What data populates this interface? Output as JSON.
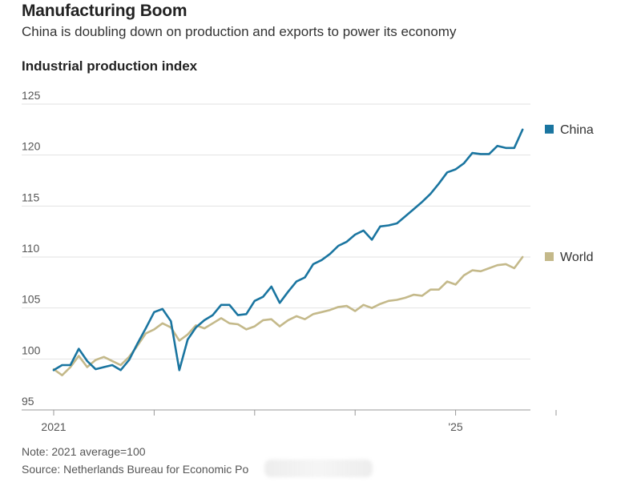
{
  "header": {
    "title": "Manufacturing Boom",
    "subtitle": "China is doubling down on production and exports to power its economy",
    "chart_label": "Industrial production index"
  },
  "footer": {
    "note": "Note: 2021 average=100",
    "source": "Source: Netherlands Bureau for Economic Po"
  },
  "colors": {
    "china": "#1a75a0",
    "world": "#c4b98a",
    "grid": "#e2e2e2",
    "axis": "#999999"
  },
  "chart_data": {
    "type": "line",
    "title": "Industrial production index",
    "xlabel": "",
    "ylabel": "",
    "x_tick_labels": [
      "2021",
      "'25"
    ],
    "x_tick_label_index": [
      0,
      48
    ],
    "x_tick_index": [
      0,
      12,
      24,
      36,
      48,
      60
    ],
    "yticks": [
      125,
      120,
      115,
      110,
      105,
      100,
      95
    ],
    "ylim": [
      94.5,
      126
    ],
    "grid": true,
    "legend": "right, at line ends",
    "series": [
      {
        "name": "China",
        "color": "#1a75a0",
        "values": [
          98.9,
          99.4,
          99.4,
          101.0,
          99.8,
          99.0,
          99.2,
          99.4,
          98.9,
          99.9,
          101.5,
          103.0,
          104.6,
          104.9,
          103.7,
          98.9,
          101.9,
          103.1,
          103.8,
          104.3,
          105.3,
          105.3,
          104.3,
          104.4,
          105.7,
          106.1,
          107.1,
          105.5,
          106.6,
          107.6,
          108.0,
          109.3,
          109.7,
          110.3,
          111.1,
          111.5,
          112.2,
          112.6,
          111.7,
          113.0,
          113.1,
          113.3,
          114.0,
          114.7,
          115.4,
          116.2,
          117.2,
          118.3,
          118.6,
          119.2,
          120.2,
          120.1,
          120.1,
          120.9,
          120.7,
          120.7,
          122.5
        ]
      },
      {
        "name": "World",
        "color": "#c4b98a",
        "values": [
          99.0,
          98.4,
          99.2,
          100.3,
          99.2,
          99.9,
          100.2,
          99.8,
          99.4,
          100.2,
          101.3,
          102.5,
          102.9,
          103.5,
          103.1,
          101.8,
          102.4,
          103.3,
          103.0,
          103.5,
          104.0,
          103.5,
          103.4,
          102.9,
          103.2,
          103.8,
          103.9,
          103.2,
          103.8,
          104.2,
          103.9,
          104.4,
          104.6,
          104.8,
          105.1,
          105.2,
          104.7,
          105.3,
          105.0,
          105.4,
          105.7,
          105.8,
          106.0,
          106.3,
          106.2,
          106.8,
          106.8,
          107.6,
          107.3,
          108.2,
          108.7,
          108.6,
          108.9,
          109.2,
          109.3,
          108.9,
          110.0
        ]
      }
    ]
  }
}
